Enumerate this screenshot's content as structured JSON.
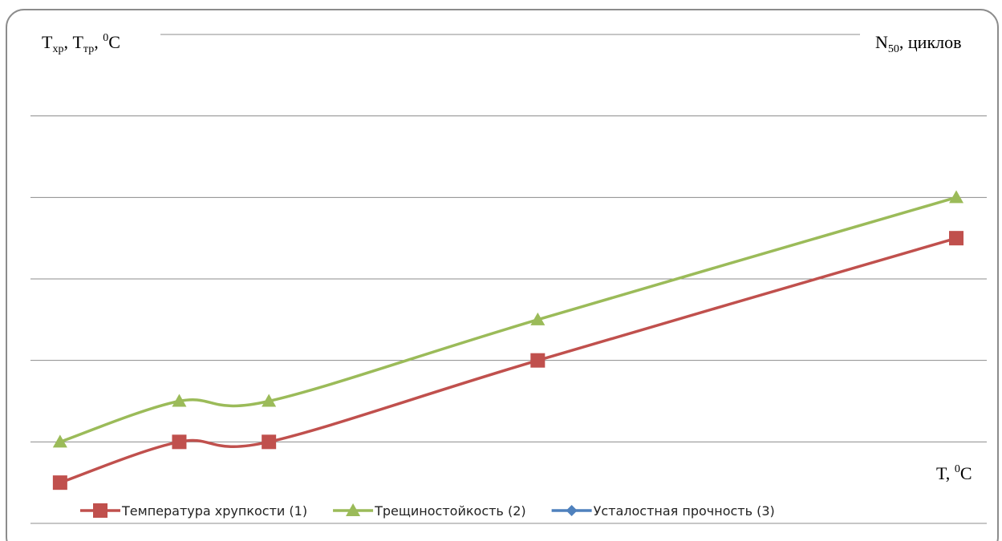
{
  "chart_data": {
    "type": "line",
    "y_label": [
      "T",
      "хр",
      ", T",
      "тр",
      ", ",
      "0",
      "C"
    ],
    "y2_label": [
      "N",
      "50",
      ", циклов"
    ],
    "x_label": [
      "T, ",
      "0",
      "C"
    ],
    "x": [
      0,
      1.33,
      2.33,
      5.33,
      10
    ],
    "xlim": [
      -0.33,
      10.34
    ],
    "ylim": [
      0,
      6
    ],
    "yticks": [
      0,
      1,
      2,
      3,
      4,
      5,
      6
    ],
    "grid": true,
    "smooth": true,
    "legend": "bottom",
    "series": [
      {
        "name": "Температура хрупкости (1)",
        "color": "#c0504d",
        "marker": "square",
        "values": [
          0.5,
          1,
          1,
          2,
          3.5
        ]
      },
      {
        "name": "Трещиностойкость (2)",
        "color": "#9bbb59",
        "marker": "triangle",
        "values": [
          1,
          1.5,
          1.5,
          2.5,
          4
        ]
      },
      {
        "name": "Усталостная прочность (3)",
        "color": "#4f81bd",
        "marker": "diamond",
        "values": [
          null,
          null,
          null,
          null,
          null
        ]
      }
    ]
  }
}
